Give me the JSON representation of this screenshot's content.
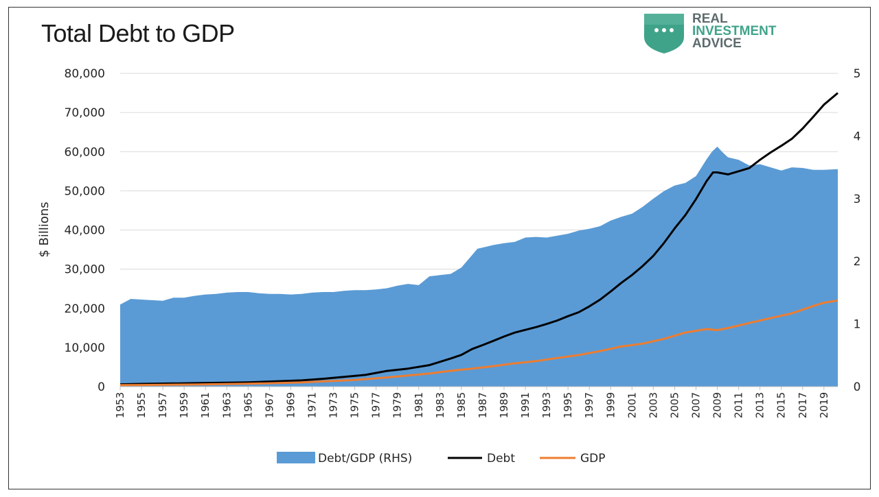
{
  "chart_data": {
    "type": "area+line",
    "title": "Total Debt to GDP",
    "ylabel": "$ Billions",
    "ylim": [
      0,
      80000
    ],
    "y2lim": [
      0,
      5
    ],
    "yticks": [
      0,
      10000,
      20000,
      30000,
      40000,
      50000,
      60000,
      70000,
      80000
    ],
    "yticklabels": [
      "0",
      "10,000",
      "20,000",
      "30,000",
      "40,000",
      "50,000",
      "60,000",
      "70,000",
      "80,000"
    ],
    "y2ticks": [
      0,
      1,
      2,
      3,
      4,
      5
    ],
    "y2ticklabels": [
      "0",
      "1",
      "2",
      "3",
      "4",
      "5"
    ],
    "xlim": [
      1953,
      2020.3
    ],
    "xticklabels": [
      "1953",
      "1955",
      "1957",
      "1959",
      "1961",
      "1963",
      "1965",
      "1967",
      "1969",
      "1971",
      "1973",
      "1975",
      "1977",
      "1979",
      "1981",
      "1983",
      "1985",
      "1987",
      "1989",
      "1991",
      "1993",
      "1995",
      "1997",
      "1999",
      "2001",
      "2003",
      "2005",
      "2007",
      "2009",
      "2011",
      "2013",
      "2015",
      "2017",
      "2019"
    ],
    "grid": true,
    "legend_position": "bottom",
    "colors": {
      "area": "#5b9bd5",
      "debt": "#000000",
      "gdp": "#ed7d31",
      "grid": "#d9d9d9"
    },
    "series": [
      {
        "name": "Debt/GDP (RHS)",
        "kind": "area",
        "axis": "right",
        "x": [
          1953,
          1954,
          1955,
          1956,
          1957,
          1958,
          1959,
          1960,
          1961,
          1962,
          1963,
          1964,
          1965,
          1966,
          1967,
          1968,
          1969,
          1970,
          1971,
          1972,
          1973,
          1974,
          1975,
          1976,
          1977,
          1978,
          1979,
          1980,
          1981,
          1982,
          1983,
          1984,
          1985,
          1986,
          1986.5,
          1987,
          1988,
          1989,
          1990,
          1991,
          1992,
          1993,
          1994,
          1995,
          1996,
          1997,
          1998,
          1999,
          2000,
          2001,
          2002,
          2003,
          2004,
          2005,
          2006,
          2007,
          2008,
          2008.5,
          2009,
          2009.5,
          2010,
          2011,
          2012,
          2013,
          2014,
          2015,
          2016,
          2017,
          2018,
          2019,
          2020.3
        ],
        "values": [
          1.31,
          1.4,
          1.39,
          1.38,
          1.37,
          1.42,
          1.42,
          1.45,
          1.47,
          1.48,
          1.5,
          1.51,
          1.51,
          1.49,
          1.48,
          1.48,
          1.47,
          1.48,
          1.5,
          1.51,
          1.51,
          1.53,
          1.54,
          1.54,
          1.55,
          1.57,
          1.61,
          1.64,
          1.62,
          1.76,
          1.78,
          1.8,
          1.9,
          2.1,
          2.2,
          2.22,
          2.26,
          2.29,
          2.31,
          2.38,
          2.39,
          2.38,
          2.41,
          2.44,
          2.49,
          2.52,
          2.56,
          2.65,
          2.71,
          2.76,
          2.87,
          3.0,
          3.12,
          3.21,
          3.25,
          3.36,
          3.63,
          3.75,
          3.83,
          3.74,
          3.66,
          3.62,
          3.53,
          3.55,
          3.5,
          3.45,
          3.5,
          3.49,
          3.46,
          3.46,
          3.47
        ]
      },
      {
        "name": "Debt",
        "kind": "line",
        "axis": "left",
        "x": [
          1953,
          1955,
          1960,
          1965,
          1970,
          1972,
          1974,
          1976,
          1978,
          1980,
          1982,
          1984,
          1985,
          1986,
          1987,
          1988,
          1989,
          1990,
          1991,
          1992,
          1993,
          1994,
          1995,
          1996,
          1997,
          1998,
          1999,
          2000,
          2001,
          2002,
          2003,
          2004,
          2005,
          2006,
          2007,
          2008,
          2008.6,
          2009,
          2010,
          2011,
          2012,
          2013,
          2014,
          2015,
          2016,
          2017,
          2018,
          2019,
          2020.3
        ],
        "values": [
          600,
          700,
          900,
          1100,
          1600,
          2000,
          2500,
          3000,
          4000,
          4600,
          5500,
          7200,
          8100,
          9600,
          10600,
          11700,
          12800,
          13800,
          14500,
          15200,
          16000,
          16900,
          18000,
          19000,
          20500,
          22200,
          24300,
          26500,
          28500,
          30800,
          33400,
          36700,
          40400,
          43800,
          47900,
          52500,
          54700,
          54700,
          54200,
          55000,
          55800,
          57900,
          59800,
          61500,
          63300,
          65900,
          68900,
          72000,
          75000
        ]
      },
      {
        "name": "GDP",
        "kind": "line",
        "axis": "left",
        "x": [
          1953,
          1955,
          1960,
          1965,
          1970,
          1975,
          1978,
          1980,
          1982,
          1984,
          1986,
          1988,
          1990,
          1992,
          1994,
          1996,
          1998,
          2000,
          2002,
          2004,
          2006,
          2008,
          2009,
          2010,
          2012,
          2014,
          2016,
          2018,
          2019,
          2020.3
        ],
        "values": [
          380,
          420,
          540,
          740,
          1070,
          1690,
          2350,
          2860,
          3340,
          4040,
          4580,
          5240,
          5960,
          6520,
          7310,
          8070,
          9060,
          10250,
          10980,
          12210,
          13810,
          14710,
          14420,
          14960,
          16250,
          17530,
          18710,
          20610,
          21430,
          22000
        ]
      }
    ],
    "legend": [
      {
        "label": "Debt/GDP (RHS)",
        "kind": "area"
      },
      {
        "label": "Debt",
        "kind": "line"
      },
      {
        "label": "GDP",
        "kind": "line"
      }
    ]
  },
  "logo": {
    "line1": "REAL",
    "line2": "INVESTMENT",
    "line3": "ADVICE",
    "colors": {
      "shield": "#3fa38a",
      "shieldLight": "#6fc2ab",
      "text": "#5d6b6e"
    }
  }
}
